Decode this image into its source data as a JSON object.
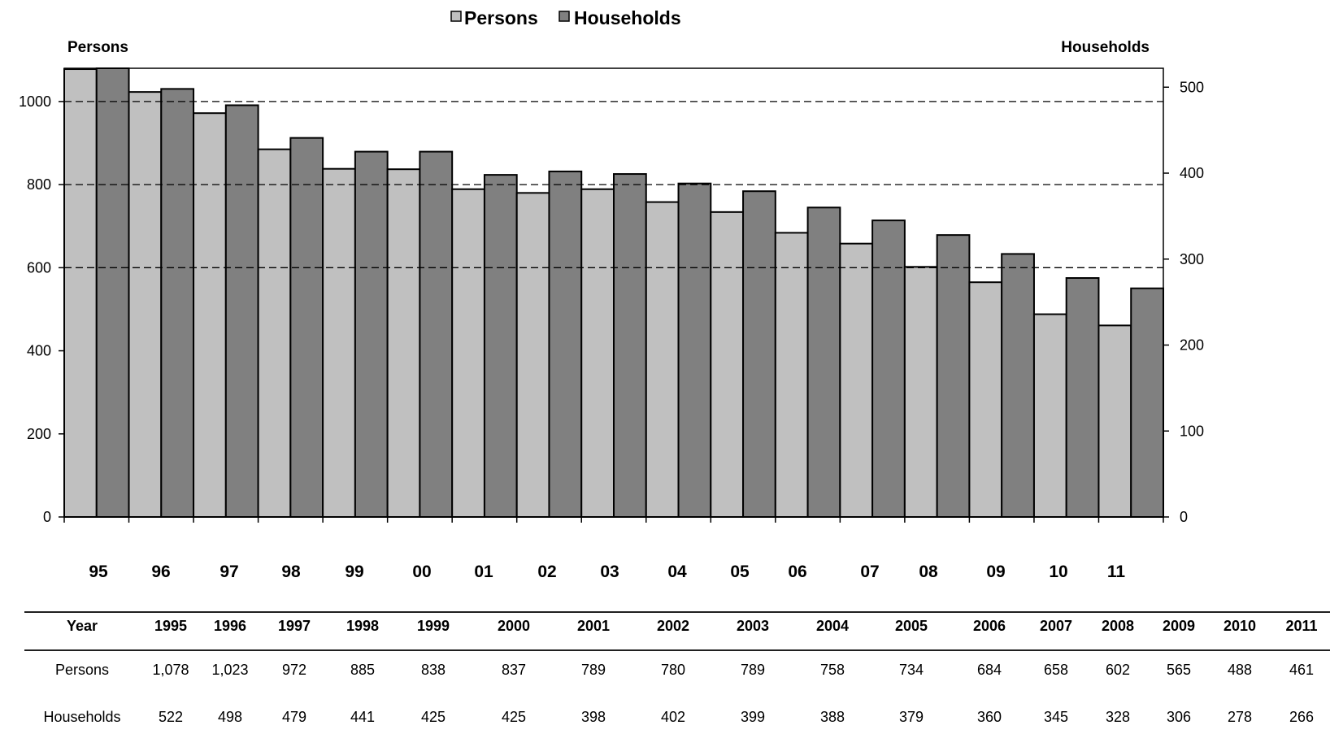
{
  "chart_data": {
    "type": "bar",
    "legend": {
      "position": "top-center",
      "items": [
        {
          "label": "Persons",
          "color": "#c0c0c0"
        },
        {
          "label": "Households",
          "color": "#808080"
        }
      ]
    },
    "left_axis_title": "Persons",
    "right_axis_title": "Households",
    "left_axis": {
      "ylim": [
        0,
        1080
      ],
      "ticks": [
        "0",
        "200",
        "400",
        "600",
        "800",
        "1000"
      ]
    },
    "right_axis": {
      "ylim": [
        0,
        522
      ],
      "ticks": [
        "0",
        "100",
        "200",
        "300",
        "400",
        "500"
      ]
    },
    "gridlines": {
      "style": "dashed",
      "at_left_values": [
        600,
        800,
        1000
      ]
    },
    "categories": [
      "95",
      "96",
      "97",
      "98",
      "99",
      "00",
      "01",
      "02",
      "03",
      "04",
      "05",
      "06",
      "07",
      "08",
      "09",
      "10",
      "11"
    ],
    "series": [
      {
        "name": "Persons",
        "axis": "left",
        "color": "#c0c0c0",
        "values": [
          1078,
          1023,
          972,
          885,
          838,
          837,
          789,
          780,
          789,
          758,
          734,
          684,
          658,
          602,
          565,
          488,
          461
        ]
      },
      {
        "name": "Households",
        "axis": "right",
        "color": "#808080",
        "values": [
          522,
          498,
          479,
          441,
          425,
          425,
          398,
          402,
          399,
          388,
          379,
          360,
          345,
          328,
          306,
          278,
          266
        ]
      }
    ]
  },
  "table": {
    "header_label": "Year",
    "years": [
      "1995",
      "1996",
      "1997",
      "1998",
      "1999",
      "2000",
      "2001",
      "2002",
      "2003",
      "2004",
      "2005",
      "2006",
      "2007",
      "2008",
      "2009",
      "2010",
      "2011"
    ],
    "rows": [
      {
        "label": "Persons",
        "values": [
          "1,078",
          "1,023",
          "972",
          "885",
          "838",
          "837",
          "789",
          "780",
          "789",
          "758",
          "734",
          "684",
          "658",
          "602",
          "565",
          "488",
          "461"
        ]
      },
      {
        "label": "Households",
        "values": [
          "522",
          "498",
          "479",
          "441",
          "425",
          "425",
          "398",
          "402",
          "399",
          "388",
          "379",
          "360",
          "345",
          "328",
          "306",
          "278",
          "266"
        ]
      }
    ]
  }
}
